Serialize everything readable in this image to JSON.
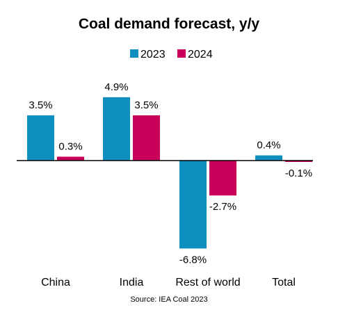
{
  "chart_data": {
    "type": "bar",
    "title": "Coal demand forecast, y/y",
    "source": "Source: IEA Coal 2023",
    "categories": [
      "China",
      "India",
      "Rest of world",
      "Total"
    ],
    "series": [
      {
        "name": "2023",
        "color": "#0E8FC0",
        "values": [
          3.5,
          4.9,
          -6.8,
          0.4
        ],
        "labels": [
          "3.5%",
          "4.9%",
          "-6.8%",
          "0.4%"
        ]
      },
      {
        "name": "2024",
        "color": "#C8005A",
        "values": [
          0.3,
          3.5,
          -2.7,
          -0.1
        ],
        "labels": [
          "0.3%",
          "3.5%",
          "-2.7%",
          "-0.1%"
        ]
      }
    ],
    "ylim": [
      -7,
      5.5
    ],
    "grid": false,
    "legend_position": "top-center"
  }
}
